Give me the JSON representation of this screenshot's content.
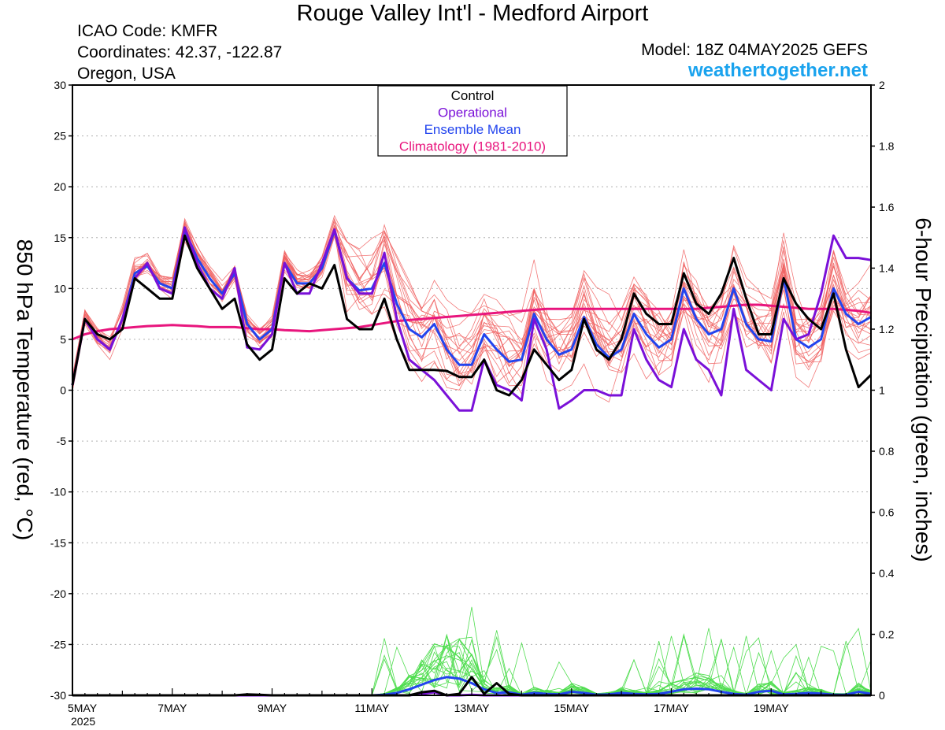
{
  "header": {
    "title": "Rouge Valley Int'l - Medford Airport",
    "icao": "ICAO Code: KMFR",
    "coords": "Coordinates: 42.37, -122.87",
    "region": "Oregon, USA",
    "model": "Model: 18Z 04MAY2025 GEFS",
    "brand": "weathertogether.net"
  },
  "colors": {
    "members": "#f06060",
    "precip_members": "#50dd50",
    "control": "#000000",
    "operational": "#7a10d8",
    "mean": "#2244ee",
    "climatology": "#e8157d",
    "brand": "#1aa3ee"
  },
  "chart_data": {
    "type": "line",
    "xlabel": "",
    "ylabel": "850 hPa Temperature (red, °C)",
    "y2label": "6-hour Precipitation (green, inches)",
    "ylim": [
      -30,
      30
    ],
    "y2lim": [
      0,
      2
    ],
    "yticks": [
      -30,
      -25,
      -20,
      -15,
      -10,
      -5,
      0,
      5,
      10,
      15,
      20,
      25,
      30
    ],
    "y2ticks": [
      0,
      0.2,
      0.4,
      0.6,
      0.8,
      1,
      1.2,
      1.4,
      1.6,
      1.8,
      2
    ],
    "x_step_hours": 6,
    "x_ticks": [
      {
        "index": 0,
        "label": "5MAY",
        "sublabel": "2025"
      },
      {
        "index": 8,
        "label": "7MAY"
      },
      {
        "index": 16,
        "label": "9MAY"
      },
      {
        "index": 24,
        "label": "11MAY"
      },
      {
        "index": 32,
        "label": "13MAY"
      },
      {
        "index": 40,
        "label": "15MAY"
      },
      {
        "index": 48,
        "label": "17MAY"
      },
      {
        "index": 56,
        "label": "19MAY"
      }
    ],
    "legend": {
      "placement": "top-center",
      "entries": [
        {
          "label": "Control",
          "color": "#000000"
        },
        {
          "label": "Operational",
          "color": "#7a10d8"
        },
        {
          "label": "Ensemble Mean",
          "color": "#2244ee"
        },
        {
          "label": "Climatology (1981-2010)",
          "color": "#e8157d"
        }
      ]
    },
    "grid": true,
    "series": [
      {
        "name": "Control",
        "axis": "temp",
        "values": [
          0.5,
          7,
          5.5,
          5,
          6,
          11,
          10,
          9,
          9,
          15.2,
          12,
          10,
          8,
          9,
          4.5,
          3,
          4,
          11,
          9.5,
          10.5,
          10,
          12.3,
          7,
          6,
          6,
          9,
          5,
          2,
          2,
          2,
          1.9,
          1.3,
          1.3,
          3,
          0,
          -0.5,
          1,
          4,
          2.5,
          1,
          2,
          7,
          4,
          3,
          5,
          9.5,
          7.5,
          6.5,
          6.5,
          11.5,
          8.5,
          7.5,
          9.5,
          13,
          9,
          5.5,
          5.5,
          11,
          8.5,
          7,
          6,
          9.5,
          4,
          0.3,
          1.5
        ]
      },
      {
        "name": "Operational",
        "axis": "temp",
        "values": [
          0.5,
          7,
          5,
          4,
          7,
          11,
          12.5,
          10,
          9.5,
          16,
          12.5,
          10,
          9,
          12,
          4.2,
          4,
          5.5,
          12.5,
          9.5,
          9.5,
          12.5,
          15.8,
          11,
          9.5,
          9.5,
          13.5,
          7,
          3,
          2,
          1,
          -0.5,
          -2,
          -2,
          3,
          0.5,
          0,
          -1,
          7,
          4,
          -1.8,
          -1,
          0,
          0,
          -0.5,
          -0.5,
          6,
          3,
          1,
          0.3,
          6,
          3,
          2,
          -0.5,
          8,
          2,
          1,
          0,
          7,
          5,
          5.5,
          9.5,
          15.2,
          13,
          13,
          12.8
        ]
      },
      {
        "name": "Ensemble Mean",
        "axis": "temp",
        "values": [
          0.5,
          7,
          5,
          4,
          7,
          11.5,
          12.2,
          10.5,
          10,
          15.7,
          13,
          11,
          9.5,
          11.5,
          6.5,
          5,
          6,
          12.5,
          10.5,
          10.5,
          12,
          15.7,
          11,
          9.8,
          10,
          12.5,
          8.5,
          6,
          5.2,
          6.5,
          4,
          2.5,
          2.5,
          5.5,
          4,
          2.8,
          3,
          7.5,
          5,
          3.5,
          4,
          7.2,
          4.5,
          3.2,
          4,
          7.5,
          5.5,
          4.2,
          5,
          10,
          7,
          5.5,
          6,
          10,
          6.5,
          5,
          4.8,
          11,
          5,
          4.2,
          5,
          10,
          7.5,
          6.5,
          7.2
        ]
      },
      {
        "name": "Climatology (1981-2010)",
        "axis": "temp",
        "values": [
          5,
          5.5,
          5.8,
          6,
          6.1,
          6.2,
          6.3,
          6.35,
          6.4,
          6.35,
          6.3,
          6.2,
          6.2,
          6.2,
          6.1,
          6,
          6,
          5.9,
          5.85,
          5.8,
          5.9,
          6,
          6.1,
          6.2,
          6.4,
          6.6,
          6.8,
          6.9,
          7,
          7.1,
          7.2,
          7.3,
          7.4,
          7.5,
          7.6,
          7.7,
          7.8,
          7.9,
          8,
          8,
          8,
          8,
          8,
          8,
          8,
          8,
          8,
          8,
          8,
          8,
          8,
          8.1,
          8.2,
          8.3,
          8.4,
          8.4,
          8.3,
          8.2,
          8.1,
          8,
          8,
          8,
          7.9,
          7.8,
          7.6
        ]
      },
      {
        "name": "Control",
        "axis": "precip",
        "values": [
          0,
          0,
          0,
          0,
          0,
          0,
          0,
          0,
          0,
          0,
          0,
          0,
          0,
          0,
          0.003,
          0.002,
          0,
          0,
          0,
          0,
          0,
          0,
          0,
          0,
          0,
          0,
          0,
          0,
          0.01,
          0.015,
          0,
          0.005,
          0.06,
          0.005,
          0.04,
          0.005,
          0,
          0,
          0,
          0,
          0,
          0,
          0,
          0,
          0,
          0,
          0,
          0,
          0,
          0,
          0,
          0,
          0,
          0,
          0,
          0,
          0,
          0,
          0,
          0,
          0,
          0,
          0,
          0,
          0
        ]
      },
      {
        "name": "Operational",
        "axis": "precip",
        "values": [
          0,
          0,
          0,
          0,
          0,
          0,
          0,
          0,
          0,
          0,
          0,
          0,
          0,
          0,
          0,
          0,
          0,
          0,
          0,
          0,
          0,
          0,
          0,
          0,
          0,
          0,
          0,
          0,
          0.005,
          0.01,
          0,
          0,
          0.002,
          0,
          0,
          0,
          0,
          0,
          0,
          0,
          0,
          0,
          0,
          0,
          0,
          0,
          0,
          0,
          0,
          0,
          0,
          0,
          0,
          0,
          0,
          0,
          0,
          0,
          0,
          0,
          0,
          0,
          0,
          0,
          0
        ]
      },
      {
        "name": "Ensemble Mean",
        "axis": "precip",
        "values": [
          0,
          0,
          0,
          0,
          0,
          0,
          0,
          0,
          0,
          0,
          0,
          0,
          0,
          0,
          0,
          0,
          0,
          0,
          0,
          0,
          0,
          0,
          0,
          0,
          0,
          0.002,
          0.008,
          0.02,
          0.035,
          0.05,
          0.06,
          0.055,
          0.04,
          0.02,
          0.008,
          0.01,
          0.002,
          0.008,
          0.005,
          0.003,
          0.012,
          0.008,
          0.002,
          0.003,
          0.008,
          0.005,
          0.003,
          0.005,
          0.012,
          0.02,
          0.022,
          0.02,
          0.012,
          0.005,
          0.002,
          0.012,
          0.015,
          0.003,
          0.005,
          0.008,
          0.006,
          0.002,
          0.002,
          0.012,
          0.005
        ]
      }
    ]
  }
}
